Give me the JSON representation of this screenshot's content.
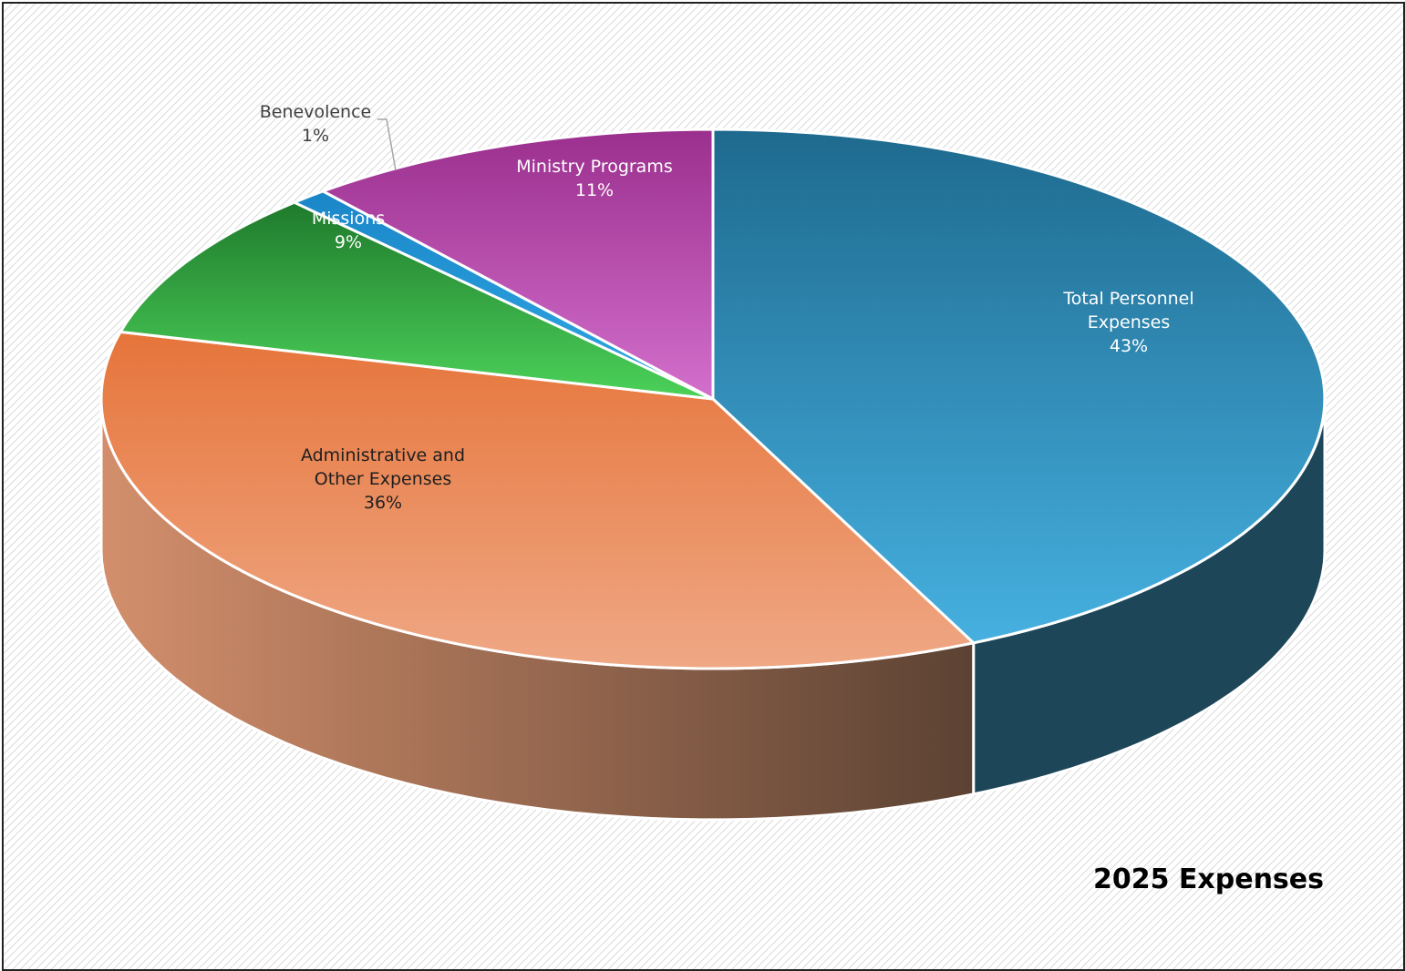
{
  "chart_data": {
    "type": "pie",
    "title": "2025 Expenses",
    "slices": [
      {
        "name": "Total Personnel Expenses",
        "label_lines": [
          "Total Personnel",
          "Expenses"
        ],
        "value": 43,
        "value_label": "43%",
        "color_top": "#1e6a8e",
        "color_bottom": "#46b0e0",
        "side_color": "#1d4659"
      },
      {
        "name": "Administrative and Other Expenses",
        "label_lines": [
          "Administrative and",
          "Other Expenses"
        ],
        "value": 36,
        "value_label": "36%",
        "color_top": "#e6743a",
        "color_bottom": "#efa885",
        "side_light": "#d38f6c",
        "side_dark": "#5c4233"
      },
      {
        "name": "Missions",
        "label_lines": [
          "Missions"
        ],
        "value": 9,
        "value_label": "9%",
        "color_top": "#1f7a2c",
        "color_bottom": "#4cd25a",
        "side_color": "#1f6a28"
      },
      {
        "name": "Benevolence",
        "label_lines": [
          "Benevolence"
        ],
        "value": 1,
        "value_label": "1%",
        "color_top": "#1a86c8",
        "color_bottom": "#31a8e4",
        "side_color": "#155f8c"
      },
      {
        "name": "Ministry Programs",
        "label_lines": [
          "Ministry Programs"
        ],
        "value": 11,
        "value_label": "11%",
        "color_top": "#9b2f8e",
        "color_bottom": "#d36fcc",
        "side_color": "#6d2466"
      }
    ]
  }
}
